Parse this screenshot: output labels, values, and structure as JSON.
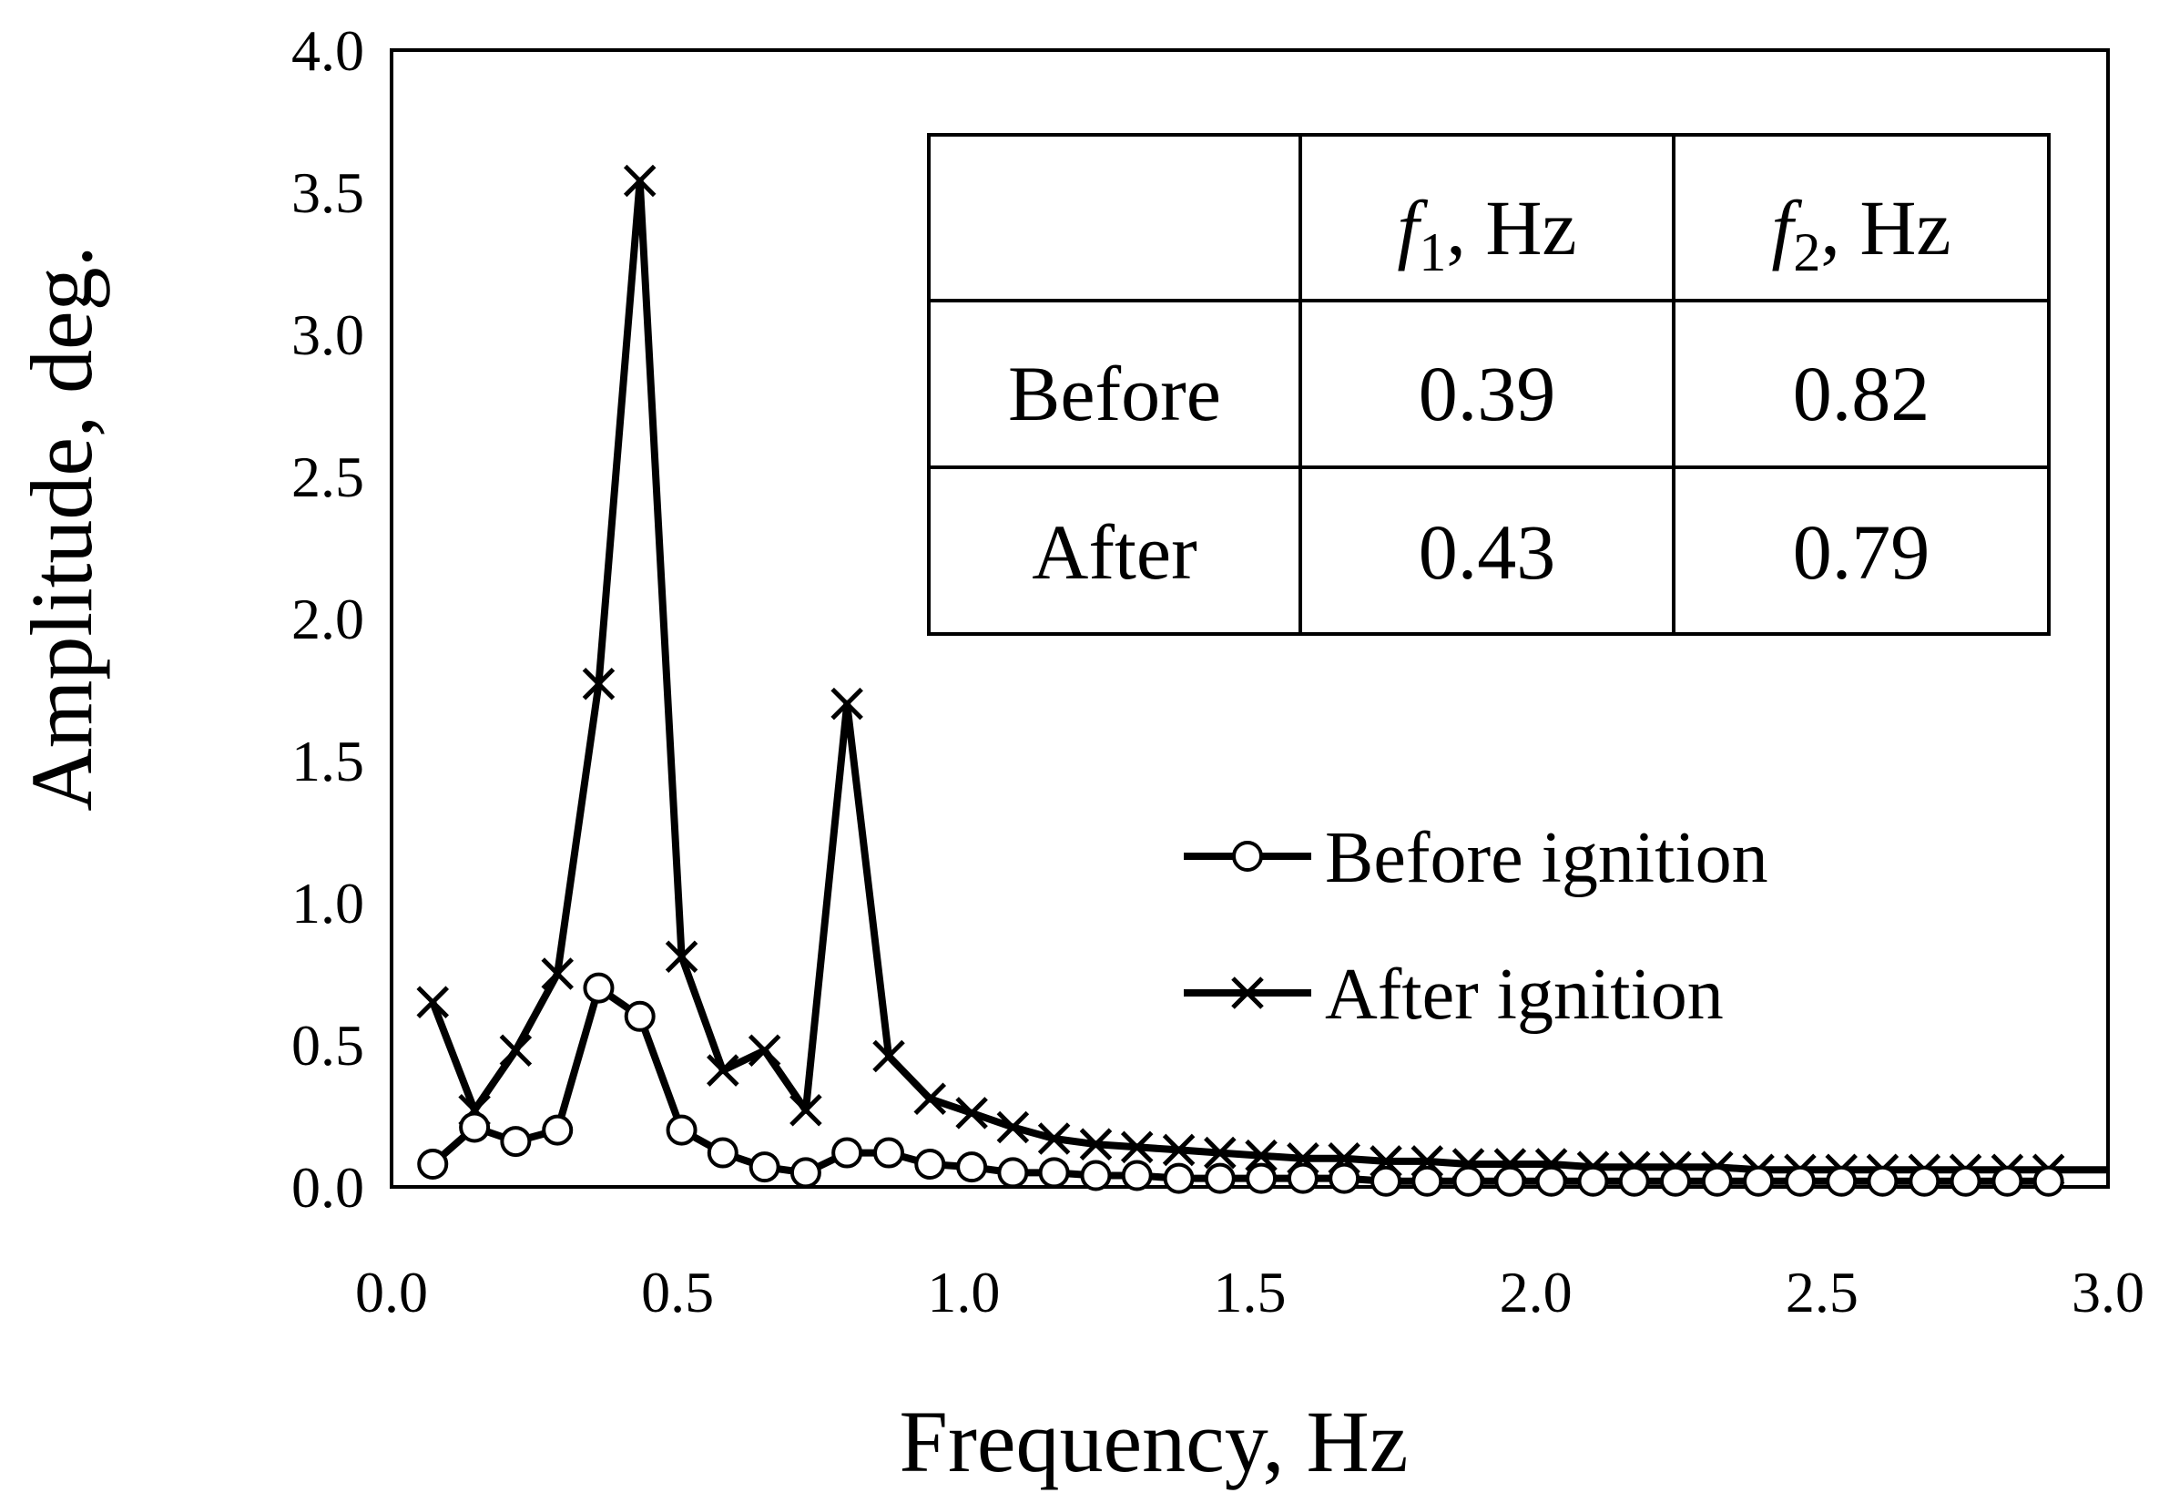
{
  "chart_data": {
    "type": "line",
    "xlabel": "Frequency, Hz",
    "ylabel": "Amplitude, deg.",
    "xlim": [
      0.0,
      3.0
    ],
    "ylim": [
      0.0,
      4.0
    ],
    "x_ticks": [
      "0.0",
      "0.5",
      "1.0",
      "1.5",
      "2.0",
      "2.5",
      "3.0"
    ],
    "y_ticks": [
      "0.0",
      "0.5",
      "1.0",
      "1.5",
      "2.0",
      "2.5",
      "3.0",
      "3.5",
      "4.0"
    ],
    "x": [
      0.072,
      0.145,
      0.217,
      0.29,
      0.362,
      0.434,
      0.507,
      0.579,
      0.652,
      0.724,
      0.796,
      0.869,
      0.941,
      1.014,
      1.086,
      1.158,
      1.231,
      1.303,
      1.376,
      1.448,
      1.52,
      1.593,
      1.665,
      1.738,
      1.81,
      1.882,
      1.955,
      2.027,
      2.1,
      2.172,
      2.244,
      2.317,
      2.389,
      2.462,
      2.534,
      2.606,
      2.679,
      2.751,
      2.824,
      2.896
    ],
    "series": [
      {
        "name": "Before ignition",
        "marker": "circle",
        "values": [
          0.08,
          0.21,
          0.16,
          0.2,
          0.7,
          0.6,
          0.2,
          0.12,
          0.07,
          0.05,
          0.12,
          0.12,
          0.08,
          0.07,
          0.05,
          0.05,
          0.04,
          0.04,
          0.03,
          0.03,
          0.03,
          0.03,
          0.03,
          0.02,
          0.02,
          0.02,
          0.02,
          0.02,
          0.02,
          0.02,
          0.02,
          0.02,
          0.02,
          0.02,
          0.02,
          0.02,
          0.02,
          0.02,
          0.02,
          0.02
        ]
      },
      {
        "name": "After ignition",
        "marker": "x",
        "values": [
          0.65,
          0.27,
          0.48,
          0.75,
          1.77,
          3.54,
          0.81,
          0.41,
          0.48,
          0.27,
          1.7,
          0.46,
          0.31,
          0.26,
          0.21,
          0.17,
          0.15,
          0.14,
          0.13,
          0.12,
          0.11,
          0.1,
          0.1,
          0.09,
          0.09,
          0.08,
          0.08,
          0.08,
          0.07,
          0.07,
          0.07,
          0.07,
          0.06,
          0.06,
          0.06,
          0.06,
          0.06,
          0.06,
          0.06,
          0.06
        ]
      }
    ],
    "legend": {
      "position": "right-middle",
      "entries": [
        "Before ignition",
        "After ignition"
      ]
    },
    "inset_table": {
      "position": "top-right",
      "header": [
        "",
        "f",
        "f"
      ],
      "header_subscripts": [
        "",
        "1",
        "2"
      ],
      "header_unit": ", Hz",
      "rows": [
        [
          "Before",
          "0.39",
          "0.82"
        ],
        [
          "After",
          "0.43",
          "0.79"
        ]
      ]
    }
  }
}
